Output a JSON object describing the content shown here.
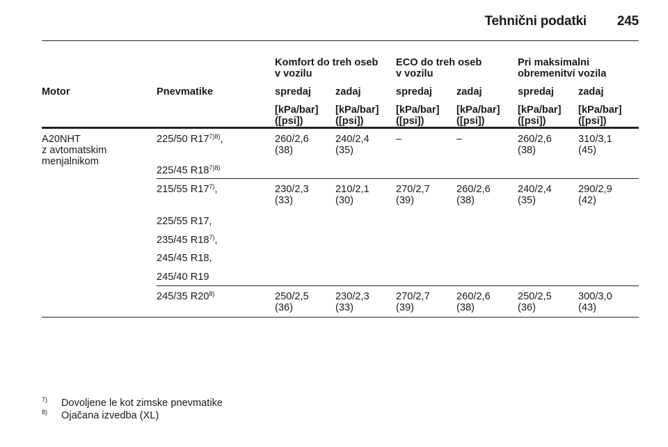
{
  "header": {
    "title": "Tehnični podatki",
    "page_number": "245"
  },
  "groups": {
    "comfort": [
      "Komfort do treh oseb",
      "v vozilu"
    ],
    "eco": [
      "ECO do treh oseb",
      "v vozilu"
    ],
    "max": [
      "Pri maksimalni",
      "obremenitvi vozila"
    ]
  },
  "columns": {
    "motor": "Motor",
    "tyres": "Pnevmatike",
    "front": "spredaj",
    "rear": "zadaj",
    "unit_line1": "[kPa/bar]",
    "unit_line2": "([psi])"
  },
  "motor_cell": [
    "A20NHT",
    "z avtomatskim",
    "menjalnikom"
  ],
  "rows": [
    {
      "tyres": [
        {
          "text": "225/50 R17",
          "sup": "7)8)",
          "suffix": ","
        },
        {
          "text": "225/45 R18",
          "sup": "7)8)",
          "suffix": ""
        }
      ],
      "values": [
        [
          "260/2,6",
          "(38)"
        ],
        [
          "240/2,4",
          "(35)"
        ],
        [
          "–",
          ""
        ],
        [
          "–",
          ""
        ],
        [
          "260/2,6",
          "(38)"
        ],
        [
          "310/3,1",
          "(45)"
        ]
      ]
    },
    {
      "tyres": [
        {
          "text": "215/55 R17",
          "sup": "7)",
          "suffix": ","
        },
        {
          "text": "225/55 R17,",
          "sup": "",
          "suffix": ""
        },
        {
          "text": "235/45 R18",
          "sup": "7)",
          "suffix": ","
        },
        {
          "text": "245/45 R18,",
          "sup": "",
          "suffix": ""
        },
        {
          "text": "245/40 R19",
          "sup": "",
          "suffix": ""
        }
      ],
      "values": [
        [
          "230/2,3",
          "(33)"
        ],
        [
          "210/2,1",
          "(30)"
        ],
        [
          "270/2,7",
          "(39)"
        ],
        [
          "260/2,6",
          "(38)"
        ],
        [
          "240/2,4",
          "(35)"
        ],
        [
          "290/2,9",
          "(42)"
        ]
      ]
    },
    {
      "tyres": [
        {
          "text": "245/35 R20",
          "sup": "8)",
          "suffix": ""
        }
      ],
      "values": [
        [
          "250/2,5",
          "(36)"
        ],
        [
          "230/2,3",
          "(33)"
        ],
        [
          "270/2,7",
          "(39)"
        ],
        [
          "260/2,6",
          "(38)"
        ],
        [
          "250/2,5",
          "(36)"
        ],
        [
          "300/3,0",
          "(43)"
        ]
      ]
    }
  ],
  "footnotes": [
    {
      "mark": "7)",
      "text": "Dovoljene le kot zimske pnevmatike"
    },
    {
      "mark": "8)",
      "text": "Ojačana izvedba (XL)"
    }
  ]
}
